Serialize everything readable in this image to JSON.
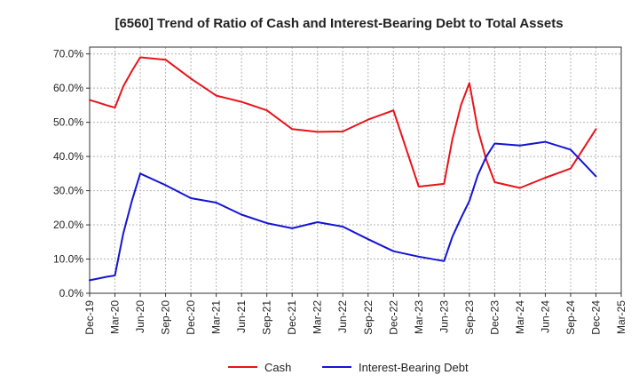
{
  "chart_data": {
    "type": "line",
    "title": "[6560]  Trend of Ratio of Cash and Interest-Bearing Debt to Total Assets",
    "xlabel": "",
    "ylabel": "",
    "x_tick_labels": [
      "Dec-19",
      "Mar-20",
      "Jun-20",
      "Sep-20",
      "Dec-20",
      "Mar-21",
      "Jun-21",
      "Sep-21",
      "Dec-21",
      "Mar-22",
      "Jun-22",
      "Sep-22",
      "Dec-22",
      "Mar-23",
      "Jun-23",
      "Sep-23",
      "Dec-23",
      "Mar-24",
      "Jun-24",
      "Sep-24",
      "Dec-24",
      "Mar-25"
    ],
    "y_tick_labels": [
      "0.0%",
      "10.0%",
      "20.0%",
      "30.0%",
      "40.0%",
      "50.0%",
      "60.0%",
      "70.0%"
    ],
    "ylim": [
      0,
      72
    ],
    "y_ticks": [
      0,
      10,
      20,
      30,
      40,
      50,
      60,
      70
    ],
    "grid": true,
    "legend_position": "bottom",
    "series": [
      {
        "name": "Cash",
        "color": "#e8141a",
        "points": [
          {
            "x": 0,
            "y": 56.5
          },
          {
            "x": 0.33,
            "y": 55.8
          },
          {
            "x": 0.67,
            "y": 55.0
          },
          {
            "x": 1,
            "y": 54.3
          },
          {
            "x": 1.33,
            "y": 60.5
          },
          {
            "x": 1.67,
            "y": 65.0
          },
          {
            "x": 2,
            "y": 69.0
          },
          {
            "x": 3,
            "y": 68.3
          },
          {
            "x": 4,
            "y": 62.8
          },
          {
            "x": 5,
            "y": 57.8
          },
          {
            "x": 6,
            "y": 56.0
          },
          {
            "x": 7,
            "y": 53.5
          },
          {
            "x": 8,
            "y": 48.0
          },
          {
            "x": 9,
            "y": 47.2
          },
          {
            "x": 10,
            "y": 47.3
          },
          {
            "x": 11,
            "y": 50.8
          },
          {
            "x": 12,
            "y": 53.5
          },
          {
            "x": 13,
            "y": 31.2
          },
          {
            "x": 14,
            "y": 32.0
          },
          {
            "x": 14.33,
            "y": 45.0
          },
          {
            "x": 14.67,
            "y": 55.0
          },
          {
            "x": 15,
            "y": 61.5
          },
          {
            "x": 15.33,
            "y": 48.0
          },
          {
            "x": 15.67,
            "y": 39.0
          },
          {
            "x": 16,
            "y": 32.5
          },
          {
            "x": 17,
            "y": 30.8
          },
          {
            "x": 18,
            "y": 33.8
          },
          {
            "x": 19,
            "y": 36.5
          },
          {
            "x": 20,
            "y": 48.0
          }
        ]
      },
      {
        "name": "Interest-Bearing Debt",
        "color": "#1414d4",
        "points": [
          {
            "x": 0,
            "y": 3.8
          },
          {
            "x": 0.33,
            "y": 4.3
          },
          {
            "x": 0.67,
            "y": 4.8
          },
          {
            "x": 1,
            "y": 5.2
          },
          {
            "x": 1.33,
            "y": 17.5
          },
          {
            "x": 1.67,
            "y": 27.0
          },
          {
            "x": 2,
            "y": 35.0
          },
          {
            "x": 3,
            "y": 31.6
          },
          {
            "x": 4,
            "y": 27.8
          },
          {
            "x": 5,
            "y": 26.5
          },
          {
            "x": 6,
            "y": 23.0
          },
          {
            "x": 7,
            "y": 20.5
          },
          {
            "x": 8,
            "y": 19.0
          },
          {
            "x": 9,
            "y": 20.8
          },
          {
            "x": 10,
            "y": 19.5
          },
          {
            "x": 11,
            "y": 15.8
          },
          {
            "x": 12,
            "y": 12.3
          },
          {
            "x": 13,
            "y": 10.7
          },
          {
            "x": 14,
            "y": 9.4
          },
          {
            "x": 14.33,
            "y": 16.5
          },
          {
            "x": 14.67,
            "y": 22.0
          },
          {
            "x": 15,
            "y": 27.0
          },
          {
            "x": 15.33,
            "y": 34.5
          },
          {
            "x": 15.67,
            "y": 40.0
          },
          {
            "x": 16,
            "y": 43.8
          },
          {
            "x": 17,
            "y": 43.2
          },
          {
            "x": 18,
            "y": 44.3
          },
          {
            "x": 19,
            "y": 42.0
          },
          {
            "x": 20,
            "y": 34.2
          }
        ]
      }
    ]
  }
}
